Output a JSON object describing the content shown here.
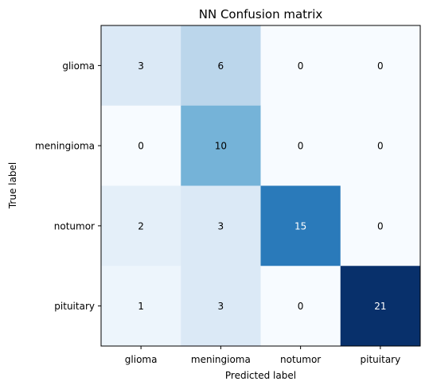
{
  "chart_data": {
    "type": "heatmap",
    "title": "NN Confusion matrix",
    "xlabel": "Predicted label",
    "ylabel": "True label",
    "x_categories": [
      "glioma",
      "meningioma",
      "notumor",
      "pituitary"
    ],
    "y_categories": [
      "glioma",
      "meningioma",
      "notumor",
      "pituitary"
    ],
    "values": [
      [
        3,
        6,
        0,
        0
      ],
      [
        0,
        10,
        0,
        0
      ],
      [
        2,
        3,
        15,
        0
      ],
      [
        1,
        3,
        0,
        21
      ]
    ],
    "colormap": "Blues",
    "value_range": [
      0,
      21
    ]
  }
}
